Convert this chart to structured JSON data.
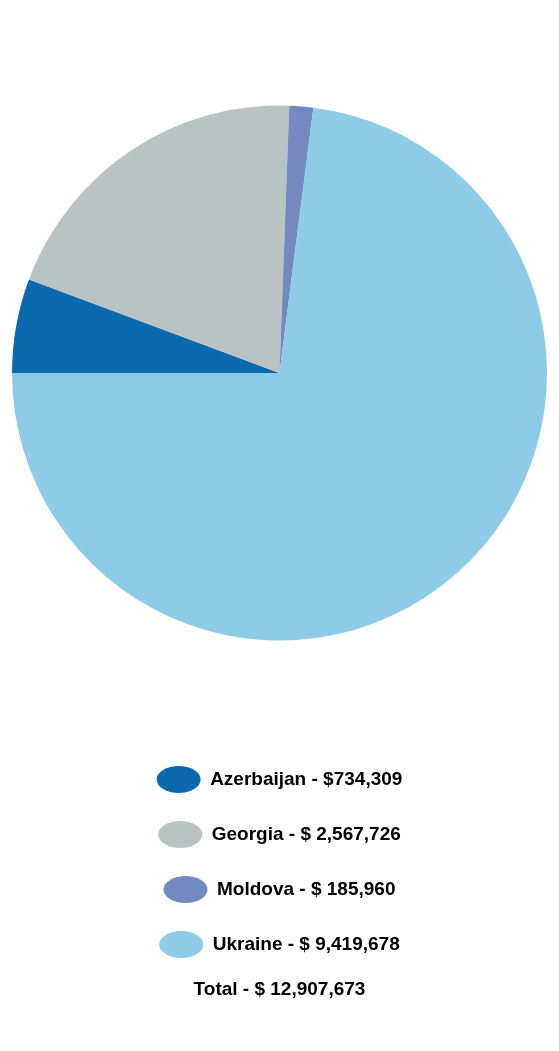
{
  "chart_data": {
    "type": "pie",
    "categories": [
      "Azerbaijan",
      "Georgia",
      "Moldova",
      "Ukraine"
    ],
    "values": [
      734309,
      2567726,
      185960,
      9419678
    ],
    "value_labels": [
      "$734,309",
      "$ 2,567,726",
      "$ 185,960",
      "$ 9,419,678"
    ],
    "colors": [
      "#0a6aad",
      "#b9c3c4",
      "#7389c0",
      "#8ecbe6"
    ],
    "legend": "bottom",
    "annotations": [
      "Total - $ 12,907,673"
    ]
  }
}
